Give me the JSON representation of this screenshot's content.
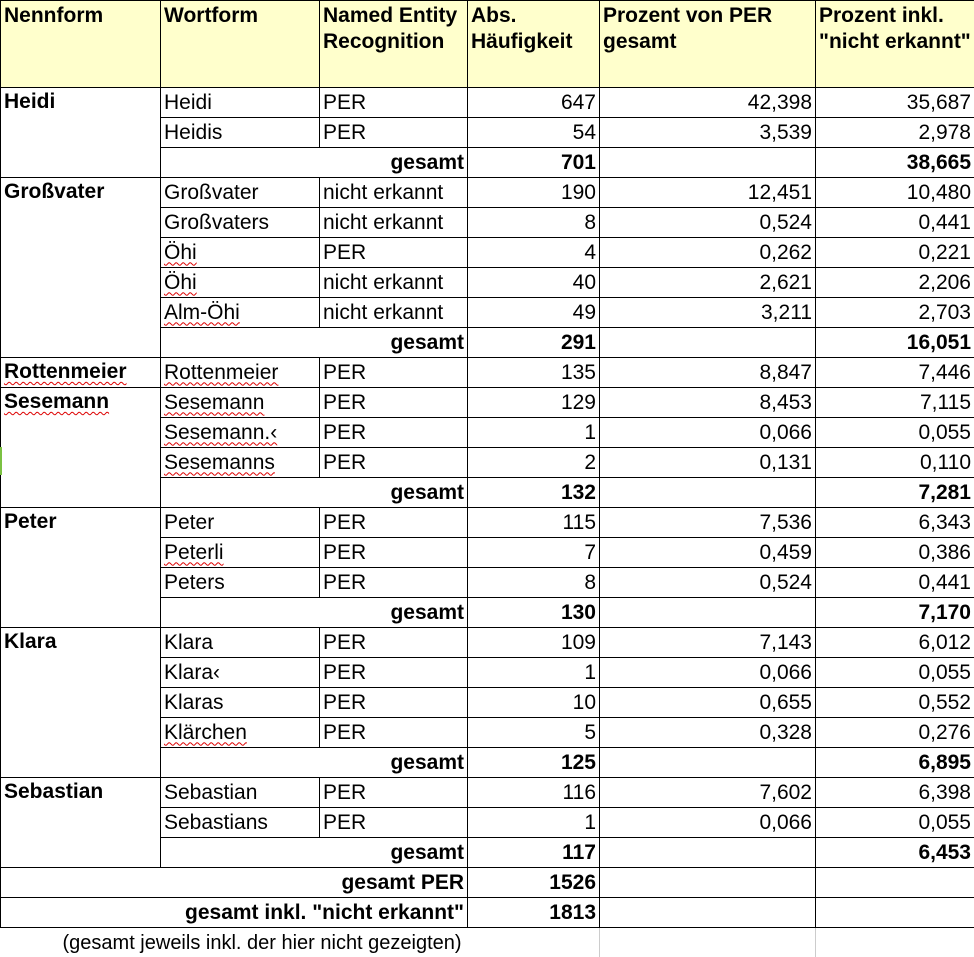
{
  "headers": {
    "nennform": "Nennform",
    "wortform": "Wortform",
    "ner": "Named Entity Recognition",
    "abs": "Abs. Häufigkeit",
    "pct_per": "Prozent von PER gesamt",
    "pct_all": "Prozent inkl. \"nicht erkannt\""
  },
  "groups": [
    {
      "name": "Heidi",
      "rows": [
        {
          "form": "Heidi",
          "ner": "PER",
          "abs": "647",
          "p1": "42,398",
          "p2": "35,687"
        },
        {
          "form": "Heidis",
          "ner": "PER",
          "abs": "54",
          "p1": "3,539",
          "p2": "2,978"
        }
      ],
      "total_label": "gesamt",
      "total_abs": "701",
      "total_pct": "38,665"
    },
    {
      "name": "Großvater",
      "rows": [
        {
          "form": "Großvater",
          "ner": "nicht erkannt",
          "abs": "190",
          "p1": "12,451",
          "p2": "10,480"
        },
        {
          "form": "Großvaters",
          "ner": "nicht erkannt",
          "abs": "8",
          "p1": "0,524",
          "p2": "0,441"
        },
        {
          "form": "Öhi",
          "ner": "PER",
          "abs": "4",
          "p1": "0,262",
          "p2": "0,221"
        },
        {
          "form": "Öhi",
          "ner": "nicht erkannt",
          "abs": "40",
          "p1": "2,621",
          "p2": "2,206"
        },
        {
          "form": "Alm-Öhi",
          "ner": "nicht erkannt",
          "abs": "49",
          "p1": "3,211",
          "p2": "2,703"
        }
      ],
      "total_label": "gesamt",
      "total_abs": "291",
      "total_pct": "16,051"
    },
    {
      "name": "Rottenmeier",
      "rows": [
        {
          "form": "Rottenmeier",
          "ner": "PER",
          "abs": "135",
          "p1": "8,847",
          "p2": "7,446"
        }
      ]
    },
    {
      "name": "Sesemann",
      "rows": [
        {
          "form": "Sesemann",
          "ner": "PER",
          "abs": "129",
          "p1": "8,453",
          "p2": "7,115"
        },
        {
          "form": "Sesemann.‹",
          "ner": "PER",
          "abs": "1",
          "p1": "0,066",
          "p2": "0,055"
        },
        {
          "form": "Sesemanns",
          "ner": "PER",
          "abs": "2",
          "p1": "0,131",
          "p2": "0,110"
        }
      ],
      "total_label": "gesamt",
      "total_abs": "132",
      "total_pct": "7,281"
    },
    {
      "name": "Peter",
      "rows": [
        {
          "form": "Peter",
          "ner": "PER",
          "abs": "115",
          "p1": "7,536",
          "p2": "6,343"
        },
        {
          "form": "Peterli",
          "ner": "PER",
          "abs": "7",
          "p1": "0,459",
          "p2": "0,386"
        },
        {
          "form": "Peters",
          "ner": "PER",
          "abs": "8",
          "p1": "0,524",
          "p2": "0,441"
        }
      ],
      "total_label": "gesamt",
      "total_abs": "130",
      "total_pct": "7,170"
    },
    {
      "name": "Klara",
      "rows": [
        {
          "form": "Klara",
          "ner": "PER",
          "abs": "109",
          "p1": "7,143",
          "p2": "6,012"
        },
        {
          "form": "Klara‹",
          "ner": "PER",
          "abs": "1",
          "p1": "0,066",
          "p2": "0,055"
        },
        {
          "form": "Klaras",
          "ner": "PER",
          "abs": "10",
          "p1": "0,655",
          "p2": "0,552"
        },
        {
          "form": "Klärchen",
          "ner": "PER",
          "abs": "5",
          "p1": "0,328",
          "p2": "0,276"
        }
      ],
      "total_label": "gesamt",
      "total_abs": "125",
      "total_pct": "6,895"
    },
    {
      "name": "Sebastian",
      "rows": [
        {
          "form": "Sebastian",
          "ner": "PER",
          "abs": "116",
          "p1": "7,602",
          "p2": "6,398"
        },
        {
          "form": "Sebastians",
          "ner": "PER",
          "abs": "1",
          "p1": "0,066",
          "p2": "0,055"
        }
      ],
      "total_label": "gesamt",
      "total_abs": "117",
      "total_pct": "6,453"
    }
  ],
  "footer": {
    "per_label": "gesamt PER",
    "per_value": "1526",
    "all_label": "gesamt inkl. \"nicht erkannt\"",
    "all_value": "1813",
    "note": "(gesamt jeweils inkl. der hier nicht gezeigten)"
  }
}
